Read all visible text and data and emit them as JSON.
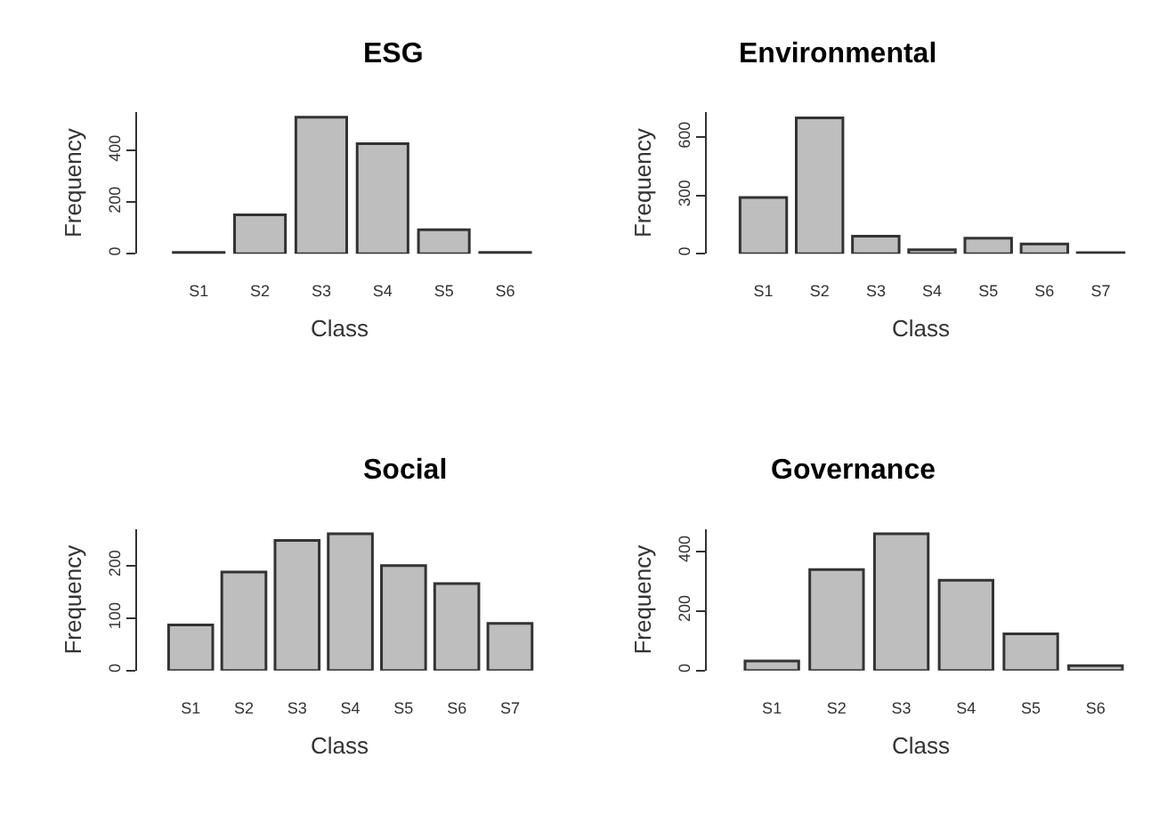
{
  "chart_data": [
    {
      "type": "bar",
      "title": "ESG",
      "xlabel": "Class",
      "ylabel": "Frequency",
      "categories": [
        "S1",
        "S2",
        "S3",
        "S4",
        "S5",
        "S6"
      ],
      "values": [
        5,
        151,
        530,
        428,
        93,
        5
      ],
      "color": "#bebebe",
      "ylim": [
        0,
        550
      ],
      "yticks": [
        0,
        200,
        400
      ]
    },
    {
      "type": "bar",
      "title": "Environmental",
      "xlabel": "Class",
      "ylabel": "Frequency",
      "categories": [
        "S1",
        "S2",
        "S3",
        "S4",
        "S5",
        "S6",
        "S7"
      ],
      "values": [
        290,
        700,
        90,
        20,
        80,
        50,
        5
      ],
      "color": "#bebebe",
      "ylim": [
        0,
        730
      ],
      "yticks": [
        0,
        300,
        600
      ]
    },
    {
      "type": "bar",
      "title": "Social",
      "xlabel": "Class",
      "ylabel": "Frequency",
      "categories": [
        "S1",
        "S2",
        "S3",
        "S4",
        "S5",
        "S6",
        "S7"
      ],
      "values": [
        87,
        188,
        248,
        261,
        200,
        166,
        90
      ],
      "color": "#bebebe",
      "ylim": [
        0,
        270
      ],
      "yticks": [
        0,
        100,
        200
      ]
    },
    {
      "type": "bar",
      "title": "Governance",
      "xlabel": "Class",
      "ylabel": "Frequency",
      "categories": [
        "S1",
        "S2",
        "S3",
        "S4",
        "S5",
        "S6"
      ],
      "values": [
        32,
        339,
        459,
        303,
        123,
        16
      ],
      "color": "#bebebe",
      "ylim": [
        0,
        475
      ],
      "yticks": [
        0,
        200,
        400
      ]
    }
  ]
}
